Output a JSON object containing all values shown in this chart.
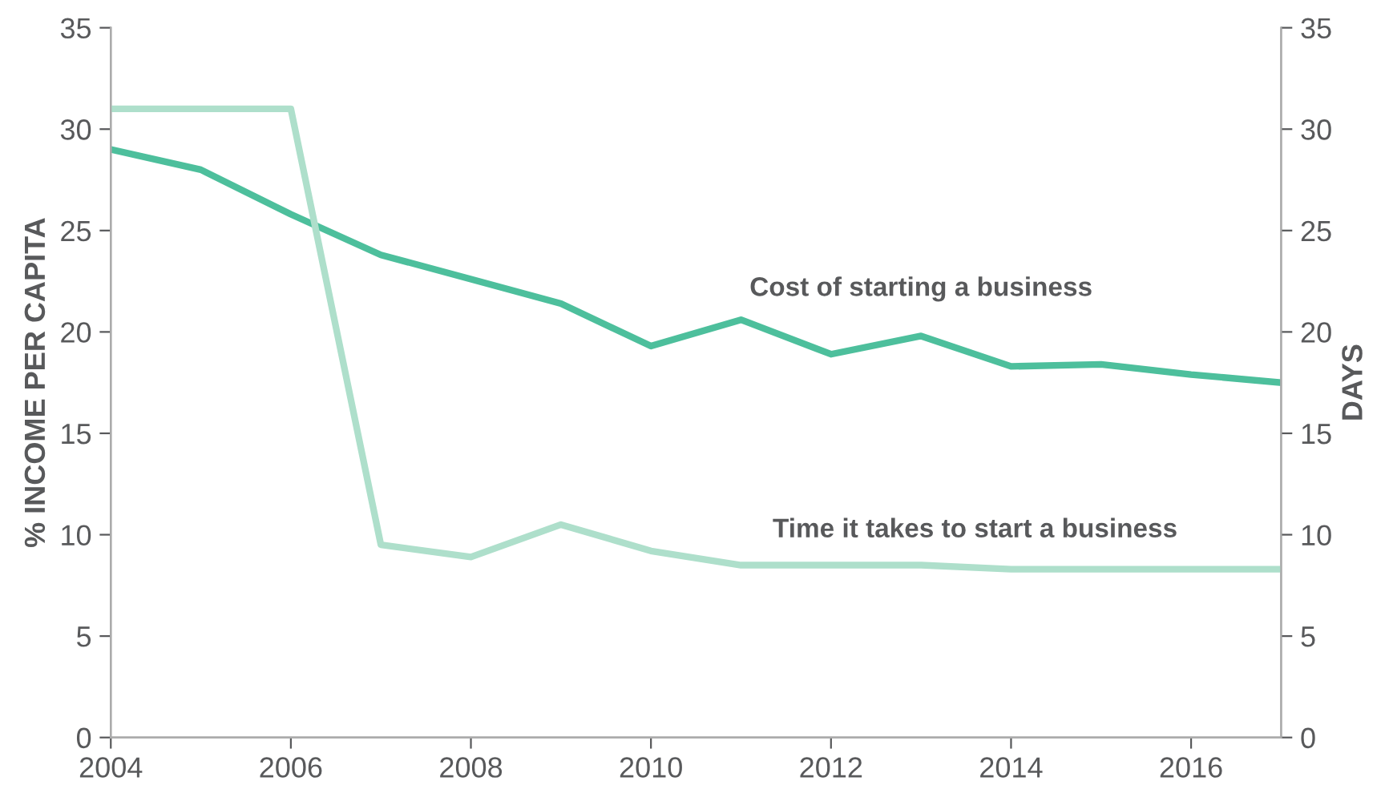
{
  "chart_data": {
    "type": "line",
    "ylabel": "% INCOME PER CAPITA",
    "y2label": "DAYS",
    "x": [
      2004,
      2005,
      2006,
      2007,
      2008,
      2009,
      2010,
      2011,
      2012,
      2013,
      2014,
      2015,
      2016,
      2017
    ],
    "series": [
      {
        "name": "Cost of starting a business",
        "color": "#4dbf9c",
        "values": [
          29.0,
          28.0,
          25.8,
          23.8,
          22.6,
          21.4,
          19.3,
          20.6,
          18.9,
          19.8,
          18.3,
          18.4,
          17.9,
          17.5
        ]
      },
      {
        "name": "Time it takes to start a business",
        "color": "#aedfcb",
        "axis": "y2",
        "values": [
          31,
          31,
          31,
          9.5,
          8.9,
          10.5,
          9.2,
          8.5,
          8.5,
          8.5,
          8.3,
          8.3,
          8.3,
          8.3
        ]
      }
    ],
    "xlim": [
      2004,
      2017
    ],
    "xticks": [
      2004,
      2006,
      2008,
      2010,
      2012,
      2014,
      2016
    ],
    "ylim": [
      0,
      35
    ],
    "yticks": [
      0,
      5,
      10,
      15,
      20,
      25,
      30,
      35
    ],
    "y2lim": [
      0,
      35
    ],
    "y2ticks": [
      0,
      5,
      10,
      15,
      20,
      25,
      30,
      35
    ],
    "grid": false,
    "legend": false,
    "marker": "none",
    "line_style": "solid"
  }
}
